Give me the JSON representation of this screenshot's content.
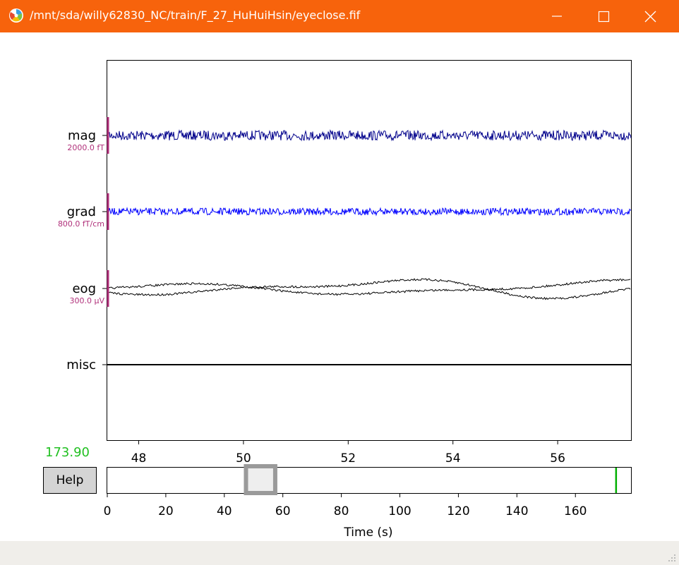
{
  "window": {
    "title": "/mnt/sda/willy62830_NC/train/F_27_HuHuiHsin/eyeclose.fif",
    "buttons": [
      "minimize",
      "maximize",
      "close"
    ]
  },
  "channels": [
    {
      "label": "mag",
      "scale": "2000.0 fT",
      "color": "#00008b"
    },
    {
      "label": "grad",
      "scale": "800.0 fT/cm",
      "color": "#0000ff"
    },
    {
      "label": "eog",
      "scale": "300.0 µV",
      "color": "#000000"
    },
    {
      "label": "misc",
      "scale": "",
      "color": "#000000"
    }
  ],
  "time_axis": {
    "ticks": [
      "48",
      "50",
      "52",
      "54",
      "56"
    ],
    "range": [
      47.4,
      57.4
    ]
  },
  "overview": {
    "ticks": [
      "0",
      "20",
      "40",
      "60",
      "80",
      "100",
      "120",
      "140",
      "160"
    ],
    "xlabel": "Time (s)",
    "range": [
      0,
      179
    ],
    "window_start": 47.4,
    "window_end": 57.4,
    "marker": 173.9
  },
  "current_time": "173.90",
  "help_label": "Help",
  "scale_color": "#b0307a",
  "marker_color": "#00b000"
}
